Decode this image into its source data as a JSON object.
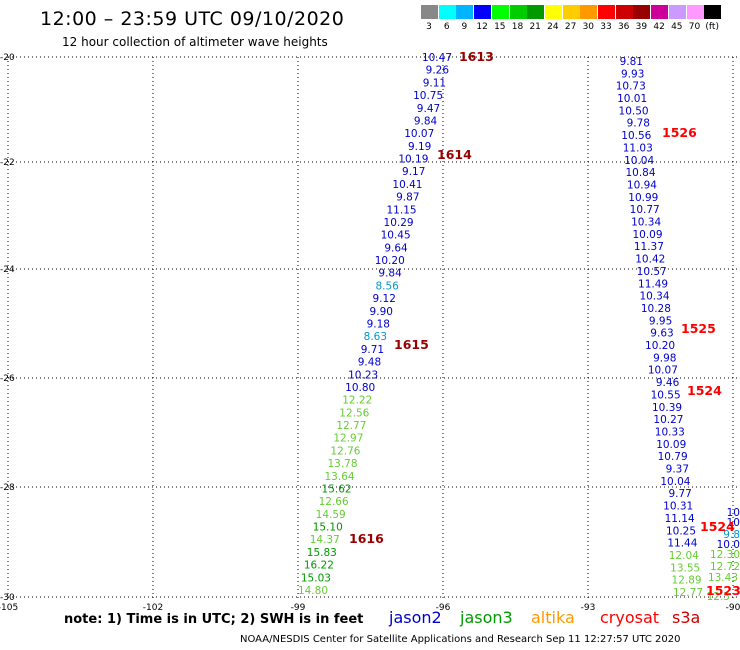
{
  "header": {
    "title": "12:00 – 23:59 UTC 09/10/2020",
    "subtitle": "12 hour collection of altimeter wave heights"
  },
  "color_scale": {
    "colors": [
      "#888888",
      "#00ffff",
      "#00b4ff",
      "#0000ff",
      "#00ff00",
      "#00cc00",
      "#009900",
      "#ffff00",
      "#ffcc00",
      "#ff9900",
      "#ff0000",
      "#cc0000",
      "#990000",
      "#cc0099",
      "#cc99ff",
      "#ff99ff",
      "#000000"
    ],
    "labels": [
      "3",
      "6",
      "9",
      "12",
      "15",
      "18",
      "21",
      "24",
      "27",
      "30",
      "33",
      "36",
      "39",
      "42",
      "45",
      "70",
      "(ft)"
    ]
  },
  "axes": {
    "y_labels": [
      "-20",
      "-22",
      "-24",
      "-26",
      "-28",
      "-30"
    ],
    "x_labels": [
      "-105",
      "-102",
      "-99",
      "-96",
      "-93",
      "-90"
    ]
  },
  "tracks": [
    {
      "labels": [
        {
          "t": "10.47",
          "c": "#0000cc"
        },
        {
          "t": "9.26",
          "c": "#0000cc"
        },
        {
          "t": "9.11",
          "c": "#0000cc"
        },
        {
          "t": "10.75",
          "c": "#0000cc"
        },
        {
          "t": "9.47",
          "c": "#0000cc"
        },
        {
          "t": "9.84",
          "c": "#0000cc"
        },
        {
          "t": "10.07",
          "c": "#0000cc"
        },
        {
          "t": "9.19",
          "c": "#0000cc"
        },
        {
          "t": "10.19",
          "c": "#0000cc"
        },
        {
          "t": "9.17",
          "c": "#0000cc"
        },
        {
          "t": "10.41",
          "c": "#0000cc"
        },
        {
          "t": "9.87",
          "c": "#0000cc"
        },
        {
          "t": "11.15",
          "c": "#0000cc"
        },
        {
          "t": "10.29",
          "c": "#0000cc"
        },
        {
          "t": "10.45",
          "c": "#0000cc"
        },
        {
          "t": "9.64",
          "c": "#0000cc"
        },
        {
          "t": "10.20",
          "c": "#0000cc"
        },
        {
          "t": "9.84",
          "c": "#0000cc"
        },
        {
          "t": "8.56",
          "c": "#0099cc"
        },
        {
          "t": "9.12",
          "c": "#0000cc"
        },
        {
          "t": "9.90",
          "c": "#0000cc"
        },
        {
          "t": "9.18",
          "c": "#0000cc"
        },
        {
          "t": "8.63",
          "c": "#0099cc"
        },
        {
          "t": "9.71",
          "c": "#0000cc"
        },
        {
          "t": "9.48",
          "c": "#0000cc"
        },
        {
          "t": "10.23",
          "c": "#0000cc"
        },
        {
          "t": "10.80",
          "c": "#0000cc"
        },
        {
          "t": "12.22",
          "c": "#66cc33"
        },
        {
          "t": "12.56",
          "c": "#66cc33"
        },
        {
          "t": "12.77",
          "c": "#66cc33"
        },
        {
          "t": "12.97",
          "c": "#66cc33"
        },
        {
          "t": "12.76",
          "c": "#66cc33"
        },
        {
          "t": "13.78",
          "c": "#66cc33"
        },
        {
          "t": "13.64",
          "c": "#66cc33"
        },
        {
          "t": "15.62",
          "c": "#009900"
        },
        {
          "t": "12.66",
          "c": "#66cc33"
        },
        {
          "t": "14.59",
          "c": "#66cc33"
        },
        {
          "t": "15.10",
          "c": "#009900"
        },
        {
          "t": "14.37",
          "c": "#66cc33"
        },
        {
          "t": "15.83",
          "c": "#009900"
        },
        {
          "t": "16.22",
          "c": "#009900"
        },
        {
          "t": "15.03",
          "c": "#009900"
        },
        {
          "t": "14.80",
          "c": "#66cc33"
        }
      ]
    },
    {
      "labels": [
        {
          "t": "9.81",
          "c": "#0000cc"
        },
        {
          "t": "9.93",
          "c": "#0000cc"
        },
        {
          "t": "10.73",
          "c": "#0000cc"
        },
        {
          "t": "10.01",
          "c": "#0000cc"
        },
        {
          "t": "10.50",
          "c": "#0000cc"
        },
        {
          "t": "9.78",
          "c": "#0000cc"
        },
        {
          "t": "10.56",
          "c": "#0000cc"
        },
        {
          "t": "11.03",
          "c": "#0000cc"
        },
        {
          "t": "10.04",
          "c": "#0000cc"
        },
        {
          "t": "10.84",
          "c": "#0000cc"
        },
        {
          "t": "10.94",
          "c": "#0000cc"
        },
        {
          "t": "10.99",
          "c": "#0000cc"
        },
        {
          "t": "10.77",
          "c": "#0000cc"
        },
        {
          "t": "10.34",
          "c": "#0000cc"
        },
        {
          "t": "10.09",
          "c": "#0000cc"
        },
        {
          "t": "11.37",
          "c": "#0000cc"
        },
        {
          "t": "10.42",
          "c": "#0000cc"
        },
        {
          "t": "10.57",
          "c": "#0000cc"
        },
        {
          "t": "11.49",
          "c": "#0000cc"
        },
        {
          "t": "10.34",
          "c": "#0000cc"
        },
        {
          "t": "10.28",
          "c": "#0000cc"
        },
        {
          "t": "9.95",
          "c": "#0000cc"
        },
        {
          "t": "9.63",
          "c": "#0000cc"
        },
        {
          "t": "10.20",
          "c": "#0000cc"
        },
        {
          "t": "9.98",
          "c": "#0000cc"
        },
        {
          "t": "10.07",
          "c": "#0000cc"
        },
        {
          "t": "9.46",
          "c": "#0000cc"
        },
        {
          "t": "10.55",
          "c": "#0000cc"
        },
        {
          "t": "10.39",
          "c": "#0000cc"
        },
        {
          "t": "10.27",
          "c": "#0000cc"
        },
        {
          "t": "10.33",
          "c": "#0000cc"
        },
        {
          "t": "10.09",
          "c": "#0000cc"
        },
        {
          "t": "10.79",
          "c": "#0000cc"
        },
        {
          "t": "9.37",
          "c": "#0000cc"
        },
        {
          "t": "10.04",
          "c": "#0000cc"
        },
        {
          "t": "9.77",
          "c": "#0000cc"
        },
        {
          "t": "10.31",
          "c": "#0000cc"
        },
        {
          "t": "11.14",
          "c": "#0000cc"
        },
        {
          "t": "10.25",
          "c": "#0000cc"
        },
        {
          "t": "11.44",
          "c": "#0000cc"
        },
        {
          "t": "12.04",
          "c": "#66cc33"
        },
        {
          "t": "13.55",
          "c": "#66cc33"
        },
        {
          "t": "12.89",
          "c": "#66cc33"
        },
        {
          "t": "12.77",
          "c": "#66cc33"
        }
      ]
    },
    {
      "labels": [
        {
          "t": "10",
          "c": "#0000cc"
        },
        {
          "t": "10",
          "c": "#0000cc"
        },
        {
          "t": "9.8",
          "c": "#0099cc"
        },
        {
          "t": "10.0",
          "c": "#0000cc"
        },
        {
          "t": "12.30",
          "c": "#66cc33"
        },
        {
          "t": "12.72",
          "c": "#66cc33"
        },
        {
          "t": "13.43",
          "c": "#66cc33"
        },
        {
          "t": "12.5",
          "c": "#66cc33"
        }
      ]
    }
  ],
  "time_markers": [
    {
      "t": "1613",
      "c": "#990000"
    },
    {
      "t": "1614",
      "c": "#990000"
    },
    {
      "t": "1615",
      "c": "#990000"
    },
    {
      "t": "1616",
      "c": "#990000"
    },
    {
      "t": "1526",
      "c": "#ff0000"
    },
    {
      "t": "1525",
      "c": "#ff0000"
    },
    {
      "t": "1524",
      "c": "#ff0000"
    },
    {
      "t": "1524",
      "c": "#ff0000"
    },
    {
      "t": "1523",
      "c": "#ff0000"
    }
  ],
  "footer": {
    "note": "note: 1) Time is in UTC; 2) SWH is in feet",
    "legend": [
      {
        "name": "jason2",
        "color": "#0000cc"
      },
      {
        "name": "jason3",
        "color": "#009900"
      },
      {
        "name": "altika",
        "color": "#ff9900"
      },
      {
        "name": "cryosat",
        "color": "#ff0000"
      },
      {
        "name": "s3a",
        "color": "#cc0000"
      }
    ],
    "credit": "NOAA/NESDIS Center for Satellite Applications and Research   Sep 11 12:27:57 UTC 2020"
  }
}
